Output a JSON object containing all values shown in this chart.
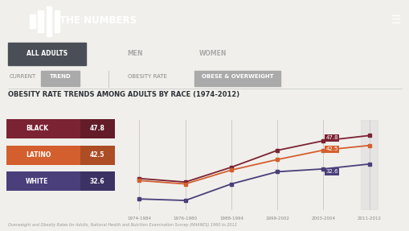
{
  "title": "OBESITY RATE TRENDS AMONG ADULTS BY RACE (1974-2012)",
  "header_bg": "#3a3f47",
  "header_text": "THE NUMBERS",
  "tab_bar_bg": "#2e3238",
  "page_bg": "#f0efeb",
  "x_labels": [
    "1974-1984",
    "1976-1980",
    "1988-1994",
    "1999-2002",
    "2003-2004",
    "2011-2012"
  ],
  "x_positions": [
    0,
    1,
    2,
    3,
    4,
    5
  ],
  "series": {
    "black": {
      "label": "BLACK",
      "value": "47.8",
      "color": "#7b2333",
      "data": [
        24.9,
        23.0,
        30.9,
        39.9,
        45.0,
        47.8
      ]
    },
    "latino": {
      "label": "LATINO",
      "value": "42.5",
      "color": "#d45f2e",
      "data": [
        23.8,
        22.0,
        29.4,
        35.0,
        40.0,
        42.5
      ]
    },
    "white": {
      "label": "WHITE",
      "value": "32.6",
      "color": "#4a3f7a",
      "data": [
        14.0,
        13.2,
        22.0,
        28.5,
        30.0,
        32.6
      ]
    }
  },
  "footnote": "Overweight and Obesity Rates for Adults, National Health and Nutrition Examination Survey (NHANES) 1960 to 2012",
  "tabs_all": "ALL ADULTS",
  "tabs_men": "MEN",
  "tabs_women": "WOMEN",
  "subtab_current": "CURRENT",
  "subtab_trend": "TREND",
  "subtab_obesity": "OBESITY RATE",
  "subtab_obese_ow": "OBESE & OVERWEIGHT"
}
